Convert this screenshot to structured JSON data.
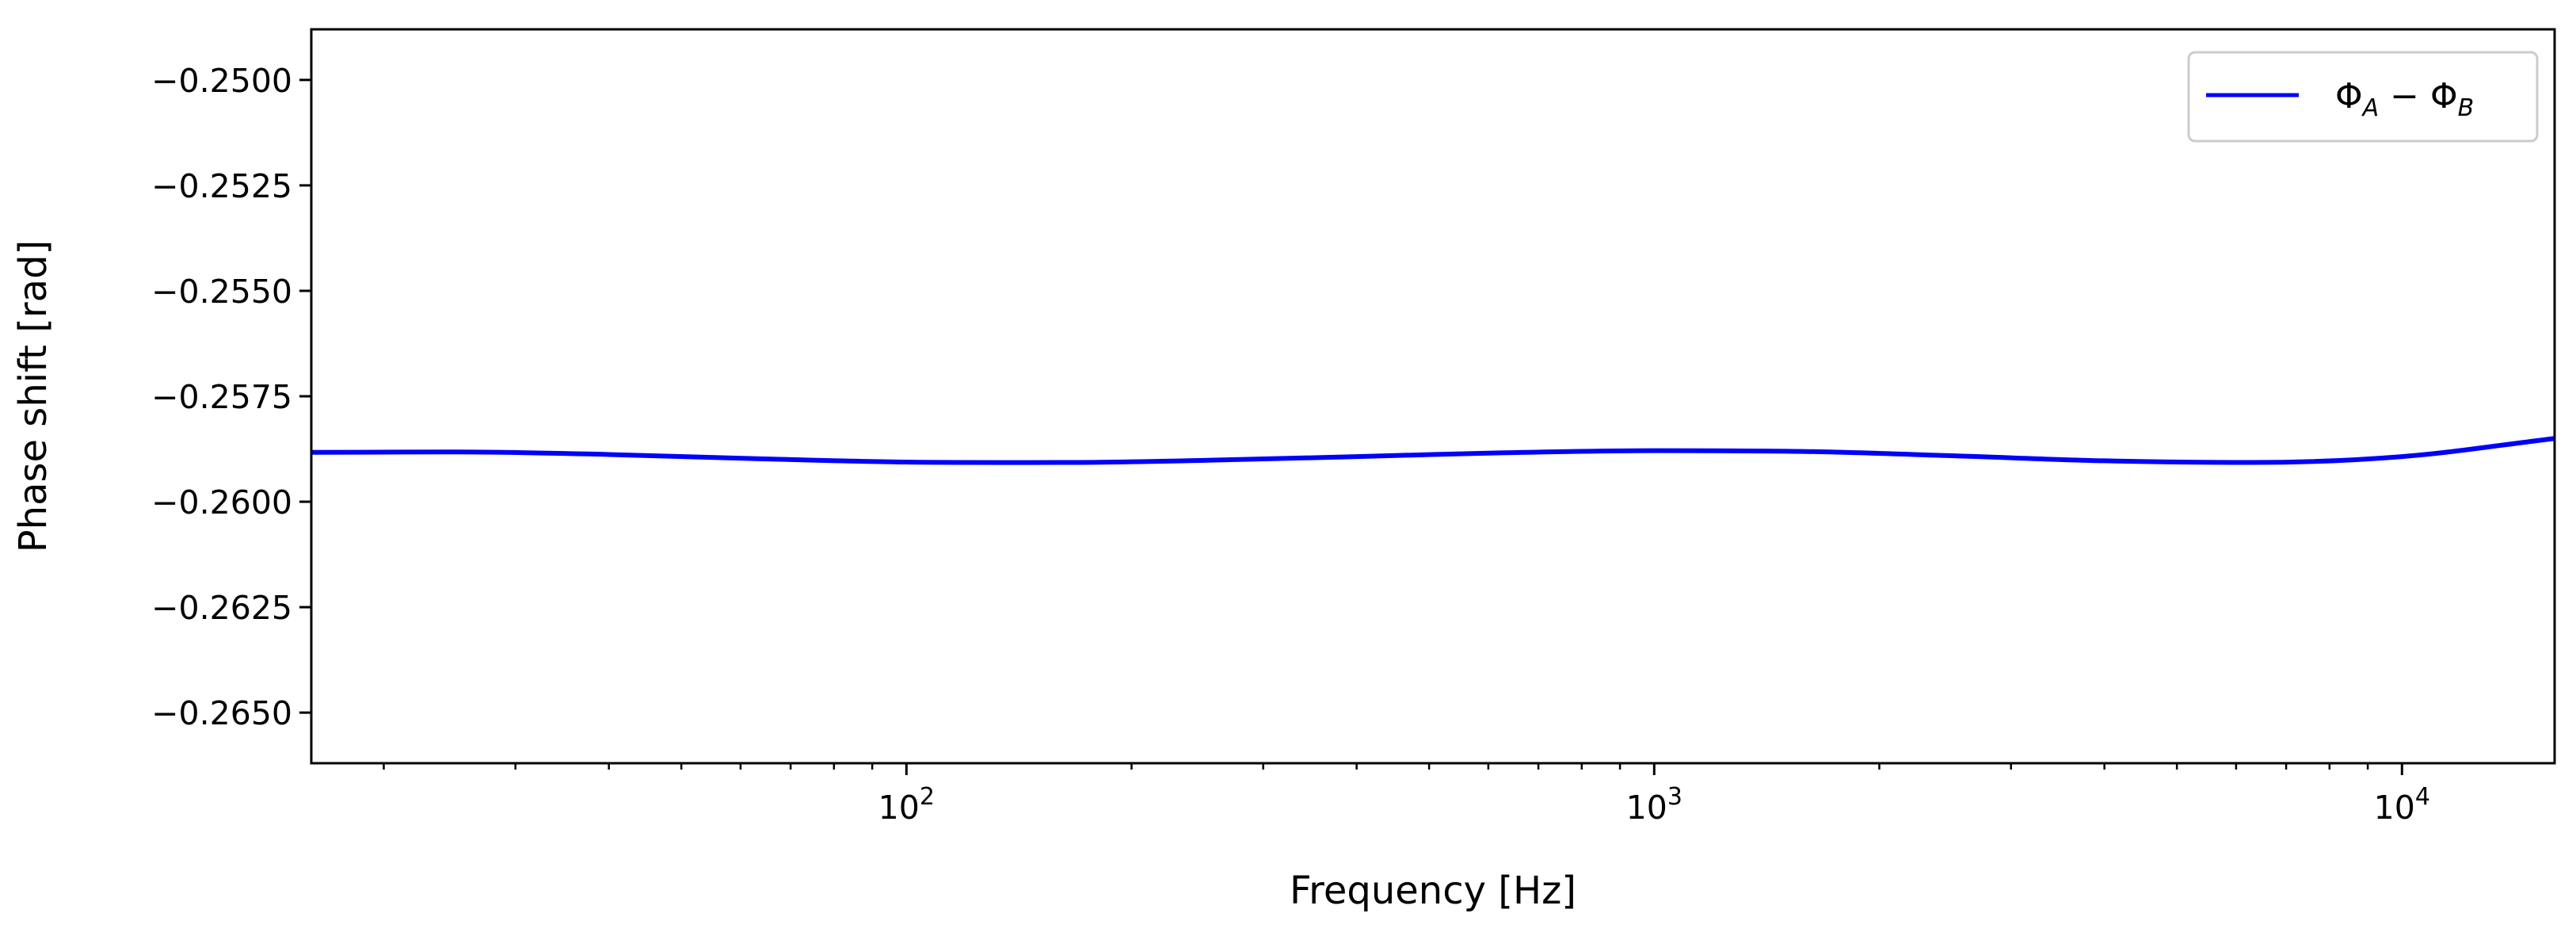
{
  "chart_data": {
    "type": "line",
    "title": "",
    "xlabel": "Frequency [Hz]",
    "ylabel": "Phase shift [rad]",
    "xscale": "log",
    "xlim": [
      16,
      16000
    ],
    "ylim": [
      -0.2662,
      -0.2488
    ],
    "x_ticks": [
      {
        "base": "10",
        "exp": "2",
        "value": 100
      },
      {
        "base": "10",
        "exp": "3",
        "value": 1000
      },
      {
        "base": "10",
        "exp": "4",
        "value": 10000
      }
    ],
    "y_ticks": [
      {
        "label": "−0.2500",
        "value": -0.25
      },
      {
        "label": "−0.2525",
        "value": -0.2525
      },
      {
        "label": "−0.2550",
        "value": -0.255
      },
      {
        "label": "−0.2575",
        "value": -0.2575
      },
      {
        "label": "−0.2600",
        "value": -0.26
      },
      {
        "label": "−0.2625",
        "value": -0.2625
      },
      {
        "label": "−0.2650",
        "value": -0.265
      }
    ],
    "grid": false,
    "legend_position": "upper right",
    "series": [
      {
        "name_main": "Φ",
        "name_sub1": "A",
        "name_op": " − Φ",
        "name_sub2": "B",
        "color": "#0000ff",
        "x": [
          16,
          25,
          40,
          63,
          100,
          160,
          250,
          400,
          630,
          1000,
          1600,
          2500,
          4000,
          6300,
          10000,
          16000
        ],
        "y": [
          -0.25883,
          -0.25882,
          -0.25888,
          -0.25898,
          -0.25906,
          -0.25907,
          -0.25902,
          -0.25893,
          -0.25884,
          -0.25879,
          -0.25881,
          -0.25891,
          -0.25903,
          -0.25907,
          -0.25893,
          -0.2585
        ]
      }
    ]
  }
}
